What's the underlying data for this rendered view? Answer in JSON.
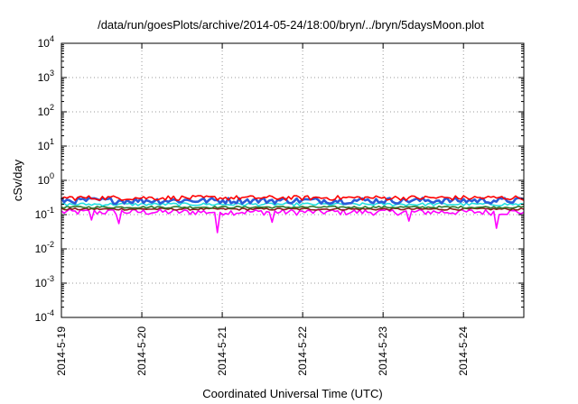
{
  "chart_data": {
    "type": "line",
    "title": "/data/run/goesPlots/archive/2014-05-24/18:00/bryn/../bryn/5daysMoon.plot",
    "xlabel": "Coordinated Universal Time (UTC)",
    "ylabel": "cSv/day",
    "y_scale": "log",
    "ylim": [
      0.0001,
      10000
    ],
    "y_ticks": [
      {
        "base": "10",
        "exp": "4",
        "value": 10000
      },
      {
        "base": "10",
        "exp": "3",
        "value": 1000
      },
      {
        "base": "10",
        "exp": "2",
        "value": 100
      },
      {
        "base": "10",
        "exp": "1",
        "value": 10
      },
      {
        "base": "10",
        "exp": "0",
        "value": 1
      },
      {
        "base": "10",
        "exp": "-1",
        "value": 0.1
      },
      {
        "base": "10",
        "exp": "-2",
        "value": 0.01
      },
      {
        "base": "10",
        "exp": "-3",
        "value": 0.001
      },
      {
        "base": "10",
        "exp": "-4",
        "value": 0.0001
      }
    ],
    "xlim": [
      "2014-05-19",
      "2014-05-24T18:00"
    ],
    "x_ticks": [
      "2014-5-19",
      "2014-5-20",
      "2014-5-21",
      "2014-5-22",
      "2014-5-23",
      "2014-5-24"
    ],
    "grid": true,
    "series": [
      {
        "color": "#ff0000",
        "level": 0.31,
        "spread": 0.16
      },
      {
        "color": "#2a5bd7",
        "level": 0.26,
        "spread": 0.2
      },
      {
        "color": "#22e0e0",
        "level": 0.2,
        "spread": 0.1
      },
      {
        "color": "#2c7a2c",
        "level": 0.165,
        "spread": 0.07
      },
      {
        "color": "#8b1a1a",
        "level": 0.145,
        "spread": 0.07
      },
      {
        "color": "#ff00ff",
        "level": 0.12,
        "spread": 0.2
      }
    ],
    "dips": [
      {
        "x": "2014-05-19T09:00",
        "series": 5,
        "y": 0.07
      },
      {
        "x": "2014-05-19T17:00",
        "series": 5,
        "y": 0.055
      },
      {
        "x": "2014-05-20T22:40",
        "series": 5,
        "y": 0.03
      },
      {
        "x": "2014-05-21T15:00",
        "series": 5,
        "y": 0.06
      },
      {
        "x": "2014-05-24T10:00",
        "series": 5,
        "y": 0.04
      },
      {
        "x": "2014-05-23T08:00",
        "series": 5,
        "y": 0.065
      }
    ]
  }
}
